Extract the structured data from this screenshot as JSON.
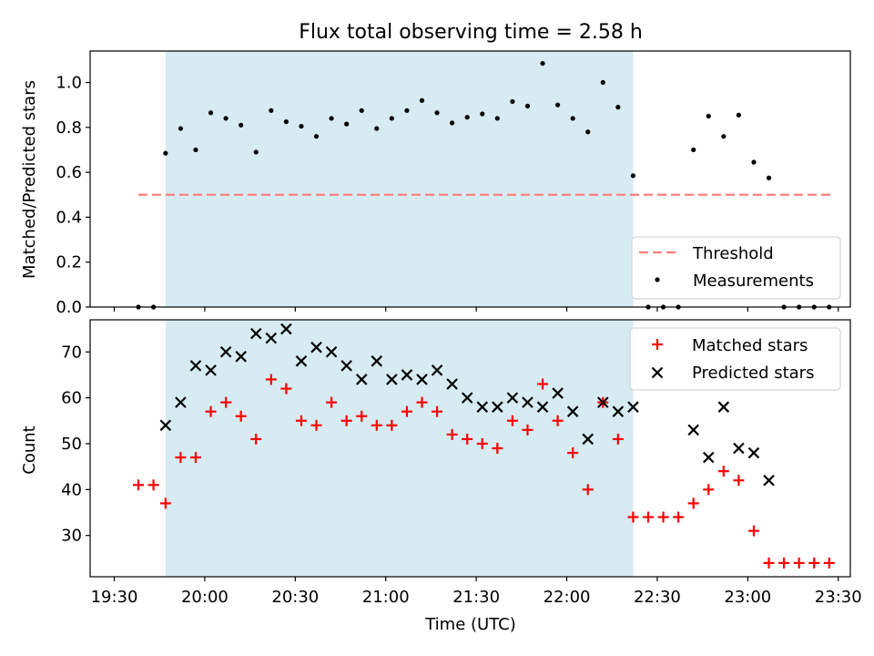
{
  "chart_data": [
    {
      "type": "scatter",
      "title": "Flux total observing time = 2.58 h",
      "ylabel": "Matched/Predicted stars",
      "xlim": [
        "19:22",
        "23:34"
      ],
      "ylim": [
        0,
        1.14
      ],
      "yticks": [
        "0.0",
        "0.2",
        "0.4",
        "0.6",
        "0.8",
        "1.0"
      ],
      "shaded_span": [
        "19:47",
        "22:22"
      ],
      "threshold": {
        "name": "Threshold",
        "value": 0.5,
        "x_range": [
          "19:38",
          "23:28"
        ],
        "color": "#ff7f7f"
      },
      "legend_position": "lower right",
      "series": [
        {
          "name": "Measurements",
          "marker": "dot",
          "color": "#000000",
          "x": [
            "19:38",
            "19:43",
            "19:47",
            "19:52",
            "19:57",
            "20:02",
            "20:07",
            "20:12",
            "20:17",
            "20:22",
            "20:27",
            "20:32",
            "20:37",
            "20:42",
            "20:47",
            "20:52",
            "20:57",
            "21:02",
            "21:07",
            "21:12",
            "21:17",
            "21:22",
            "21:27",
            "21:32",
            "21:37",
            "21:42",
            "21:47",
            "21:52",
            "21:57",
            "22:02",
            "22:07",
            "22:12",
            "22:17",
            "22:22",
            "22:27",
            "22:32",
            "22:37",
            "22:42",
            "22:47",
            "22:52",
            "22:57",
            "23:02",
            "23:07",
            "23:12",
            "23:17",
            "23:22",
            "23:27"
          ],
          "y": [
            0,
            0,
            0.685,
            0.795,
            0.7,
            0.865,
            0.84,
            0.81,
            0.69,
            0.875,
            0.825,
            0.805,
            0.76,
            0.84,
            0.815,
            0.875,
            0.795,
            0.84,
            0.875,
            0.92,
            0.865,
            0.82,
            0.845,
            0.86,
            0.84,
            0.915,
            0.895,
            1.085,
            0.9,
            0.84,
            0.78,
            1.0,
            0.89,
            0.585,
            0,
            0,
            0,
            0.7,
            0.85,
            0.76,
            0.855,
            0.645,
            0.575,
            0,
            0,
            0,
            0
          ]
        }
      ]
    },
    {
      "type": "scatter",
      "xlabel": "Time (UTC)",
      "ylabel": "Count",
      "xlim": [
        "19:22",
        "23:34"
      ],
      "ylim": [
        21,
        77
      ],
      "xticks": [
        "19:30",
        "20:00",
        "20:30",
        "21:00",
        "21:30",
        "22:00",
        "22:30",
        "23:00",
        "23:30"
      ],
      "yticks": [
        "30",
        "40",
        "50",
        "60",
        "70"
      ],
      "shaded_span": [
        "19:47",
        "22:22"
      ],
      "legend_position": "upper right",
      "series": [
        {
          "name": "Matched stars",
          "marker": "plus",
          "color": "#ff0000",
          "x": [
            "19:38",
            "19:43",
            "19:47",
            "19:52",
            "19:57",
            "20:02",
            "20:07",
            "20:12",
            "20:17",
            "20:22",
            "20:27",
            "20:32",
            "20:37",
            "20:42",
            "20:47",
            "20:52",
            "20:57",
            "21:02",
            "21:07",
            "21:12",
            "21:17",
            "21:22",
            "21:27",
            "21:32",
            "21:37",
            "21:42",
            "21:47",
            "21:52",
            "21:57",
            "22:02",
            "22:07",
            "22:12",
            "22:17",
            "22:22",
            "22:27",
            "22:32",
            "22:37",
            "22:42",
            "22:47",
            "22:52",
            "22:57",
            "23:02",
            "23:07",
            "23:12",
            "23:17",
            "23:22",
            "23:27"
          ],
          "y": [
            41,
            41,
            37,
            47,
            47,
            57,
            59,
            56,
            51,
            64,
            62,
            55,
            54,
            59,
            55,
            56,
            54,
            54,
            57,
            59,
            57,
            52,
            51,
            50,
            49,
            55,
            53,
            63,
            55,
            48,
            40,
            59,
            51,
            34,
            34,
            34,
            34,
            37,
            40,
            44,
            42,
            31,
            24,
            24,
            24,
            24,
            24
          ]
        },
        {
          "name": "Predicted stars",
          "marker": "x",
          "color": "#000000",
          "x": [
            "19:47",
            "19:52",
            "19:57",
            "20:02",
            "20:07",
            "20:12",
            "20:17",
            "20:22",
            "20:27",
            "20:32",
            "20:37",
            "20:42",
            "20:47",
            "20:52",
            "20:57",
            "21:02",
            "21:07",
            "21:12",
            "21:17",
            "21:22",
            "21:27",
            "21:32",
            "21:37",
            "21:42",
            "21:47",
            "21:52",
            "21:57",
            "22:02",
            "22:07",
            "22:12",
            "22:17",
            "22:22",
            "22:42",
            "22:47",
            "22:52",
            "22:57",
            "23:02",
            "23:07"
          ],
          "y": [
            54,
            59,
            67,
            66,
            70,
            69,
            74,
            73,
            75,
            68,
            71,
            70,
            67,
            64,
            68,
            64,
            65,
            64,
            66,
            63,
            60,
            58,
            58,
            60,
            59,
            58,
            61,
            57,
            51,
            59,
            57,
            58,
            53,
            47,
            58,
            49,
            48,
            42
          ]
        }
      ]
    }
  ]
}
